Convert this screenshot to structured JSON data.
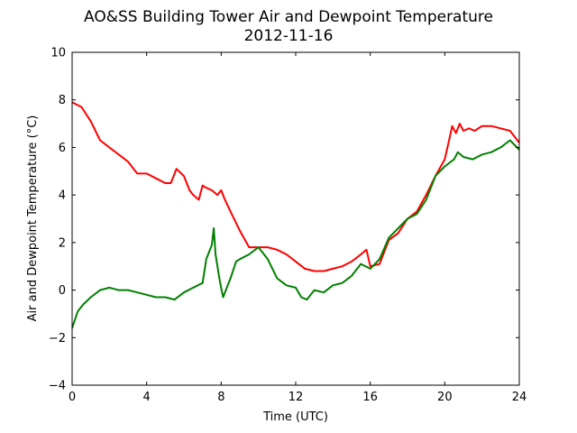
{
  "chart_data": {
    "type": "line",
    "title": "AO&SS Building Tower Air and Dewpoint Temperature",
    "subtitle": "2012-11-16",
    "xlabel": "Time (UTC)",
    "ylabel": "Air and Dewpoint Temperature (°C)",
    "xlim": [
      0,
      24
    ],
    "ylim": [
      -4,
      10
    ],
    "xticks": [
      "0",
      "4",
      "8",
      "12",
      "16",
      "20",
      "24"
    ],
    "yticks": [
      "−4",
      "−2",
      "0",
      "2",
      "4",
      "6",
      "8",
      "10"
    ],
    "grid": false,
    "series": [
      {
        "color": "#ff0000",
        "x": [
          0.0,
          0.5,
          1.0,
          1.5,
          2.0,
          2.5,
          3.0,
          3.3,
          3.5,
          4.0,
          4.5,
          5.0,
          5.3,
          5.6,
          6.0,
          6.3,
          6.5,
          6.8,
          7.0,
          7.2,
          7.5,
          7.8,
          8.0,
          8.2,
          8.5,
          9.0,
          9.5,
          10.0,
          10.5,
          11.0,
          11.5,
          12.0,
          12.5,
          13.0,
          13.5,
          14.0,
          14.5,
          15.0,
          15.5,
          15.8,
          16.0,
          16.5,
          17.0,
          17.5,
          18.0,
          18.5,
          19.0,
          19.5,
          20.0,
          20.2,
          20.4,
          20.6,
          20.8,
          21.0,
          21.3,
          21.6,
          22.0,
          22.5,
          23.0,
          23.5,
          24.0
        ],
        "y": [
          7.9,
          7.7,
          7.1,
          6.3,
          6.0,
          5.7,
          5.4,
          5.1,
          4.9,
          4.9,
          4.7,
          4.5,
          4.5,
          5.1,
          4.8,
          4.2,
          4.0,
          3.8,
          4.4,
          4.3,
          4.2,
          4.0,
          4.2,
          3.8,
          3.3,
          2.5,
          1.8,
          1.8,
          1.8,
          1.7,
          1.5,
          1.2,
          0.9,
          0.8,
          0.8,
          0.9,
          1.0,
          1.2,
          1.5,
          1.7,
          1.0,
          1.1,
          2.1,
          2.4,
          3.0,
          3.3,
          4.0,
          4.8,
          5.5,
          6.2,
          6.9,
          6.6,
          7.0,
          6.7,
          6.8,
          6.7,
          6.9,
          6.9,
          6.8,
          6.7,
          6.2
        ]
      },
      {
        "color": "#008000",
        "x": [
          0.0,
          0.3,
          0.6,
          1.0,
          1.5,
          2.0,
          2.5,
          3.0,
          3.5,
          4.0,
          4.5,
          5.0,
          5.5,
          6.0,
          6.5,
          7.0,
          7.2,
          7.5,
          7.6,
          7.7,
          7.9,
          8.0,
          8.1,
          8.2,
          8.5,
          8.8,
          9.0,
          9.5,
          10.0,
          10.5,
          11.0,
          11.5,
          12.0,
          12.3,
          12.6,
          12.8,
          13.0,
          13.5,
          14.0,
          14.5,
          15.0,
          15.5,
          16.0,
          16.5,
          17.0,
          17.5,
          18.0,
          18.5,
          19.0,
          19.5,
          20.0,
          20.5,
          20.7,
          21.0,
          21.5,
          22.0,
          22.5,
          23.0,
          23.5,
          24.0
        ],
        "y": [
          -1.6,
          -0.9,
          -0.6,
          -0.3,
          0.0,
          0.1,
          0.0,
          0.0,
          -0.1,
          -0.2,
          -0.3,
          -0.3,
          -0.4,
          -0.1,
          0.1,
          0.3,
          1.3,
          1.9,
          2.6,
          1.5,
          0.5,
          0.1,
          -0.3,
          -0.1,
          0.5,
          1.2,
          1.3,
          1.5,
          1.8,
          1.3,
          0.5,
          0.2,
          0.1,
          -0.3,
          -0.4,
          -0.2,
          0.0,
          -0.1,
          0.2,
          0.3,
          0.6,
          1.1,
          0.9,
          1.3,
          2.2,
          2.6,
          3.0,
          3.2,
          3.8,
          4.8,
          5.2,
          5.5,
          5.8,
          5.6,
          5.5,
          5.7,
          5.8,
          6.0,
          6.3,
          5.9
        ]
      }
    ]
  }
}
